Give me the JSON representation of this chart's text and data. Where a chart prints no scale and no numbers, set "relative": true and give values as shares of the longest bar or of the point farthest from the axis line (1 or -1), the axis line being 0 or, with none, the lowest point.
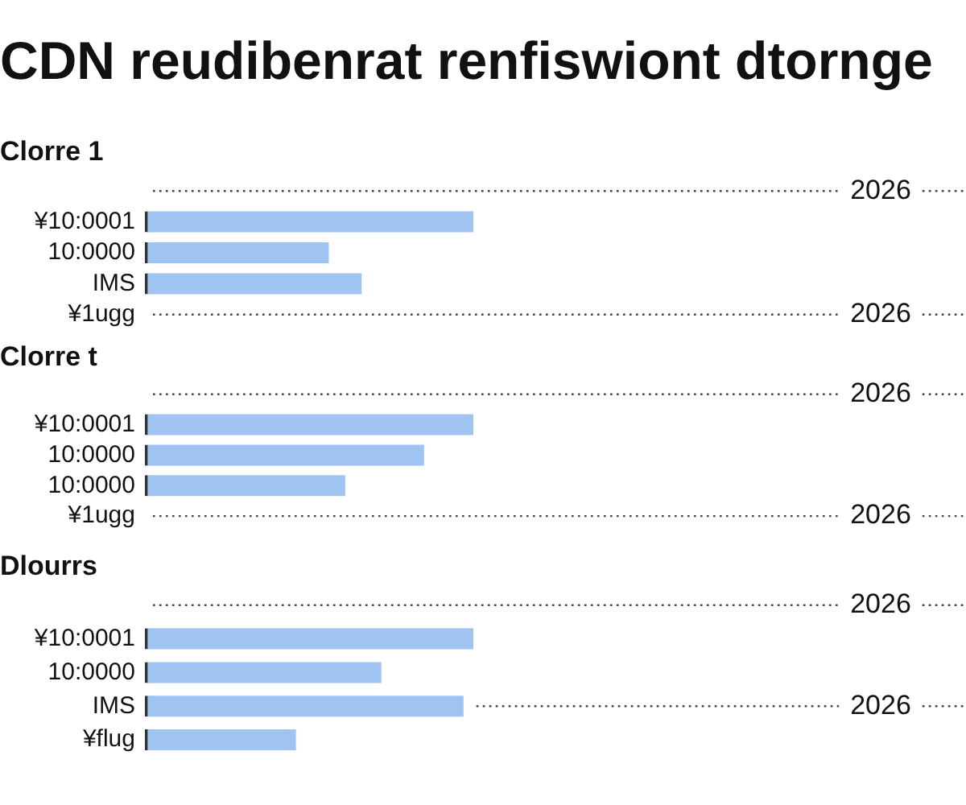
{
  "chart_data": [
    {
      "type": "bar",
      "orientation": "horizontal",
      "relative": true,
      "title": "CDN reudibenrat renfiswiont dtornge",
      "subtitle": "Clorre 1",
      "categories": [
        null,
        "¥10:0001",
        "10:0000",
        "IMS",
        "¥1ugg"
      ],
      "values": [
        null,
        1,
        0.56,
        0.66,
        null
      ],
      "color": "#9fc4f2",
      "annotations": [
        "2026",
        "2026"
      ]
    },
    {
      "type": "bar",
      "orientation": "horizontal",
      "relative": true,
      "title": "Clorre t",
      "categories": [
        null,
        "¥10:0001",
        "10:0000",
        "10:0000",
        "¥1ugg"
      ],
      "values": [
        null,
        1,
        0.85,
        0.61,
        null
      ],
      "color": "#9fc4f2",
      "annotations": [
        "2026",
        "2026"
      ]
    },
    {
      "type": "bar",
      "orientation": "horizontal",
      "relative": true,
      "title": "Dlourrs",
      "categories": [
        null,
        "¥10:0001",
        "10:0000",
        "IMS",
        "¥flug"
      ],
      "values": [
        null,
        1,
        0.72,
        0.97,
        0.46
      ],
      "color": "#9fc4f2",
      "annotations": [
        "2026",
        "2026"
      ]
    }
  ]
}
